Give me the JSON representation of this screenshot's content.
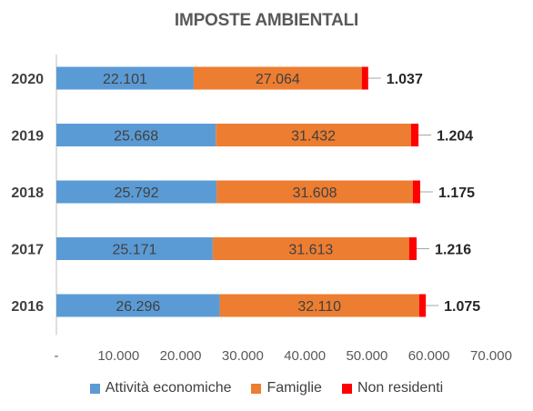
{
  "chart_data": {
    "type": "bar",
    "orientation": "horizontal",
    "stacked": true,
    "title": "IMPOSTE AMBIENTALI",
    "categories": [
      "2020",
      "2019",
      "2018",
      "2017",
      "2016"
    ],
    "series": [
      {
        "name": "Attività economiche",
        "color": "#5B9BD5",
        "values": [
          22101,
          25668,
          25792,
          25171,
          26296
        ],
        "labels": [
          "22.101",
          "25.668",
          "25.792",
          "25.171",
          "26.296"
        ]
      },
      {
        "name": "Famiglie",
        "color": "#ED7D31",
        "values": [
          27064,
          31432,
          31608,
          31613,
          32110
        ],
        "labels": [
          "27.064",
          "31.432",
          "31.608",
          "31.613",
          "32.110"
        ]
      },
      {
        "name": "Non residenti",
        "color": "#FF0000",
        "values": [
          1037,
          1204,
          1175,
          1216,
          1075
        ],
        "labels": [
          "1.037",
          "1.204",
          "1.175",
          "1.216",
          "1.075"
        ]
      }
    ],
    "xlim": [
      0,
      70000
    ],
    "xticks": [
      0,
      10000,
      20000,
      30000,
      40000,
      50000,
      60000,
      70000
    ],
    "xtick_labels": [
      "-",
      "10.000",
      "20.000",
      "30.000",
      "40.000",
      "50.000",
      "60.000",
      "70.000"
    ],
    "grid": false,
    "legend_position": "bottom"
  }
}
